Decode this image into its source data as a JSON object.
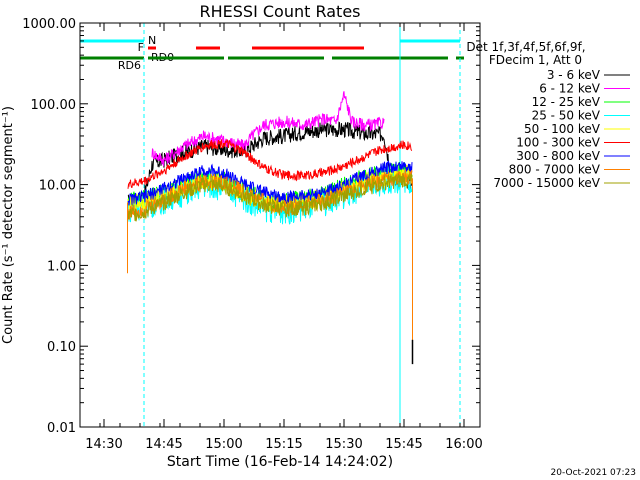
{
  "chart_data": {
    "type": "line",
    "title": "RHESSI Count Rates",
    "xlabel": "Start Time (16-Feb-14 14:24:02)",
    "ylabel": "Count Rate (s⁻¹ detector segment⁻¹)",
    "y_scale": "log",
    "ylim": [
      0.01,
      1000
    ],
    "x_unit": "minutes",
    "xlim": [
      "14:24:00",
      "16:04:00"
    ],
    "x_tick_labels": [
      "14:30",
      "14:45",
      "15:00",
      "15:15",
      "15:30",
      "15:45",
      "16:00"
    ],
    "y_tick_labels": [
      "0.01",
      "0.10",
      "1.00",
      "10.00",
      "100.00",
      "1000.00"
    ],
    "legend_header": [
      "Det 1f,3f,4f,5f,6f,9f,",
      "FDecim 1, Att 0"
    ],
    "legend_position": "right",
    "timestamp": "20-Oct-2021 07:23",
    "data_start": "14:36",
    "data_end": "15:47",
    "series": [
      {
        "name": "3 - 6 keV",
        "color": "#000000",
        "points": [
          [
            "14:36",
            6
          ],
          [
            "14:40",
            7
          ],
          [
            "14:42",
            18
          ],
          [
            "14:45",
            20
          ],
          [
            "14:50",
            25
          ],
          [
            "14:55",
            30
          ],
          [
            "15:00",
            27
          ],
          [
            "15:05",
            26
          ],
          [
            "15:07",
            30
          ],
          [
            "15:10",
            38
          ],
          [
            "15:15",
            40
          ],
          [
            "15:20",
            45
          ],
          [
            "15:25",
            48
          ],
          [
            "15:30",
            48
          ],
          [
            "15:35",
            43
          ],
          [
            "15:38",
            42
          ],
          [
            "15:40",
            42
          ],
          [
            "15:42",
            12
          ],
          [
            "15:45",
            11
          ],
          [
            "15:47",
            11
          ]
        ]
      },
      {
        "name": "6 - 12 keV",
        "color": "#ff00ff",
        "points": [
          [
            "14:42",
            25
          ],
          [
            "14:45",
            20
          ],
          [
            "14:50",
            30
          ],
          [
            "14:55",
            40
          ],
          [
            "15:00",
            35
          ],
          [
            "15:05",
            30
          ],
          [
            "15:07",
            40
          ],
          [
            "15:10",
            55
          ],
          [
            "15:15",
            60
          ],
          [
            "15:20",
            55
          ],
          [
            "15:25",
            65
          ],
          [
            "15:28",
            60
          ],
          [
            "15:30",
            130
          ],
          [
            "15:32",
            60
          ],
          [
            "15:35",
            55
          ],
          [
            "15:38",
            55
          ],
          [
            "15:40",
            60
          ]
        ]
      },
      {
        "name": "12 - 25 keV",
        "color": "#00ff00",
        "points": [
          [
            "14:36",
            6
          ],
          [
            "14:45",
            8
          ],
          [
            "14:55",
            12
          ],
          [
            "15:00",
            11
          ],
          [
            "15:05",
            8
          ],
          [
            "15:10",
            6.5
          ],
          [
            "15:15",
            6
          ],
          [
            "15:20",
            6.5
          ],
          [
            "15:25",
            7.5
          ],
          [
            "15:30",
            9.5
          ],
          [
            "15:35",
            12
          ],
          [
            "15:40",
            14
          ],
          [
            "15:45",
            15
          ],
          [
            "15:47",
            14
          ]
        ]
      },
      {
        "name": "25 - 50 keV",
        "color": "#00ffff",
        "points": [
          [
            "14:36",
            5
          ],
          [
            "14:45",
            6.5
          ],
          [
            "14:55",
            10
          ],
          [
            "15:00",
            9.5
          ],
          [
            "15:05",
            7
          ],
          [
            "15:10",
            5.2
          ],
          [
            "15:15",
            4.8
          ],
          [
            "15:20",
            5.2
          ],
          [
            "15:25",
            6
          ],
          [
            "15:30",
            7.5
          ],
          [
            "15:35",
            9.5
          ],
          [
            "15:40",
            11
          ],
          [
            "15:45",
            12
          ],
          [
            "15:47",
            11
          ]
        ]
      },
      {
        "name": "50 - 100 keV",
        "color": "#ffff00",
        "points": [
          [
            "14:36",
            5.5
          ],
          [
            "14:45",
            7.5
          ],
          [
            "14:55",
            11
          ],
          [
            "15:00",
            10.5
          ],
          [
            "15:05",
            7.8
          ],
          [
            "15:10",
            6
          ],
          [
            "15:15",
            5.6
          ],
          [
            "15:20",
            6
          ],
          [
            "15:25",
            7
          ],
          [
            "15:30",
            8.6
          ],
          [
            "15:35",
            11
          ],
          [
            "15:40",
            12.5
          ],
          [
            "15:45",
            13.5
          ],
          [
            "15:47",
            13
          ]
        ]
      },
      {
        "name": "100 - 300 keV",
        "color": "#ff0000",
        "points": [
          [
            "14:36",
            10
          ],
          [
            "14:40",
            11
          ],
          [
            "14:45",
            15
          ],
          [
            "14:50",
            22
          ],
          [
            "14:55",
            30
          ],
          [
            "15:00",
            33
          ],
          [
            "15:05",
            25
          ],
          [
            "15:10",
            16
          ],
          [
            "15:15",
            13
          ],
          [
            "15:20",
            13
          ],
          [
            "15:25",
            14
          ],
          [
            "15:30",
            17
          ],
          [
            "15:35",
            22
          ],
          [
            "15:40",
            28
          ],
          [
            "15:45",
            31
          ],
          [
            "15:47",
            30
          ]
        ]
      },
      {
        "name": "300 - 800 keV",
        "color": "#0000ff",
        "points": [
          [
            "14:36",
            6.5
          ],
          [
            "14:40",
            7
          ],
          [
            "14:45",
            9
          ],
          [
            "14:50",
            12
          ],
          [
            "14:55",
            15
          ],
          [
            "15:00",
            14
          ],
          [
            "15:05",
            10
          ],
          [
            "15:10",
            8
          ],
          [
            "15:15",
            7
          ],
          [
            "15:20",
            7.2
          ],
          [
            "15:25",
            8
          ],
          [
            "15:30",
            10
          ],
          [
            "15:35",
            13
          ],
          [
            "15:40",
            16
          ],
          [
            "15:45",
            17
          ],
          [
            "15:47",
            16
          ]
        ]
      },
      {
        "name": "800 - 7000 keV",
        "color": "#ff8000",
        "points": [
          [
            "14:36",
            4.5
          ],
          [
            "14:40",
            5
          ],
          [
            "14:45",
            6.5
          ],
          [
            "14:50",
            9
          ],
          [
            "14:55",
            11
          ],
          [
            "15:00",
            10.5
          ],
          [
            "15:05",
            8
          ],
          [
            "15:10",
            6
          ],
          [
            "15:15",
            5.3
          ],
          [
            "15:20",
            5.6
          ],
          [
            "15:25",
            6.3
          ],
          [
            "15:30",
            7.8
          ],
          [
            "15:35",
            9.5
          ],
          [
            "15:40",
            11.5
          ],
          [
            "15:45",
            12.5
          ],
          [
            "15:47",
            12
          ]
        ]
      },
      {
        "name": "7000 - 15000 keV",
        "color": "#a0a000",
        "points": [
          [
            "14:36",
            4.2
          ],
          [
            "14:40",
            4.6
          ],
          [
            "14:45",
            6
          ],
          [
            "14:50",
            8
          ],
          [
            "14:55",
            10
          ],
          [
            "15:00",
            9.5
          ],
          [
            "15:05",
            7.3
          ],
          [
            "15:10",
            5.6
          ],
          [
            "15:15",
            5
          ],
          [
            "15:20",
            5.2
          ],
          [
            "15:25",
            5.9
          ],
          [
            "15:30",
            7.2
          ],
          [
            "15:35",
            9
          ],
          [
            "15:40",
            10.5
          ],
          [
            "15:45",
            11.5
          ],
          [
            "15:47",
            11
          ]
        ]
      }
    ],
    "vertical_lines": [
      {
        "x": "14:24",
        "style": "solid",
        "color": "#00ffff"
      },
      {
        "x": "14:40",
        "style": "dashed",
        "color": "#00ffff"
      },
      {
        "x": "15:44",
        "style": "solid",
        "color": "#00ffff"
      },
      {
        "x": "15:59",
        "style": "dashed",
        "color": "#00ffff"
      }
    ],
    "flag_bars": {
      "N": {
        "label": "N",
        "color": "#00ffff",
        "segments": [
          [
            "14:24",
            "14:40"
          ],
          [
            "15:44",
            "15:59"
          ]
        ]
      },
      "F": {
        "label": "F",
        "color": "#ff0000",
        "segments": [
          [
            "14:41",
            "14:43"
          ],
          [
            "14:53",
            "14:59"
          ],
          [
            "15:07",
            "15:35"
          ]
        ]
      },
      "RD0": {
        "label": "RD0",
        "color": "#008000",
        "segments": []
      },
      "RD6": {
        "label": "RD6",
        "color": "#008000",
        "segments": [
          [
            "14:24",
            "14:40"
          ],
          [
            "14:41",
            "15:00"
          ],
          [
            "15:01",
            "15:25"
          ],
          [
            "15:27",
            "15:56"
          ],
          [
            "15:58",
            "16:00"
          ]
        ]
      }
    }
  }
}
